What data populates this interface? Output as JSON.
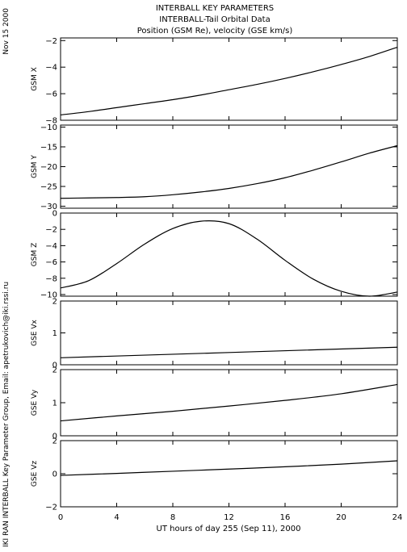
{
  "header": {
    "line1": "INTERBALL KEY PARAMETERS",
    "line2": "INTERBALL-Tail Orbital Data",
    "line3": "Position (GSM Re), velocity (GSE km/s)"
  },
  "side": {
    "date": "Nov 15 2000",
    "credit": "IKI RAN INTERBALL Key Parameter Group, Email: apetrukovich@iki.rssi.ru"
  },
  "chart_data": {
    "type": "line",
    "xlabel": "UT hours of day 255 (Sep 11), 2000",
    "xlim": [
      0,
      24
    ],
    "xticks": [
      0,
      4,
      8,
      12,
      16,
      20,
      24
    ],
    "panels": [
      {
        "ylabel": "GSM X",
        "ylim": [
          -8,
          -1.8
        ],
        "yticks": [
          -2,
          -4,
          -6,
          -8
        ],
        "x": [
          0,
          2,
          4,
          6,
          8,
          10,
          12,
          14,
          16,
          18,
          20,
          22,
          24
        ],
        "y": [
          -7.6,
          -7.35,
          -7.05,
          -6.75,
          -6.45,
          -6.1,
          -5.7,
          -5.3,
          -4.85,
          -4.35,
          -3.8,
          -3.2,
          -2.5
        ]
      },
      {
        "ylabel": "GSM Y",
        "ylim": [
          -30.5,
          -9.5
        ],
        "yticks": [
          -10,
          -15,
          -20,
          -25,
          -30
        ],
        "x": [
          0,
          2,
          4,
          6,
          8,
          10,
          12,
          14,
          16,
          18,
          20,
          22,
          24
        ],
        "y": [
          -28,
          -27.9,
          -27.8,
          -27.6,
          -27.1,
          -26.4,
          -25.5,
          -24.3,
          -22.8,
          -20.9,
          -18.8,
          -16.6,
          -14.7
        ]
      },
      {
        "ylabel": "GSM Z",
        "ylim": [
          -10.2,
          0
        ],
        "yticks": [
          0,
          -2,
          -4,
          -6,
          -8,
          -10
        ],
        "x": [
          0,
          2,
          4,
          6,
          8,
          10,
          12,
          14,
          16,
          18,
          20,
          22,
          24
        ],
        "y": [
          -9.2,
          -8.3,
          -6.2,
          -3.8,
          -1.9,
          -1.0,
          -1.3,
          -3.2,
          -5.8,
          -8.1,
          -9.6,
          -10.2,
          -9.7
        ]
      },
      {
        "ylabel": "GSE Vx",
        "ylim": [
          0,
          2
        ],
        "yticks": [
          0,
          1,
          2
        ],
        "x": [
          0,
          24
        ],
        "y": [
          0.22,
          0.55
        ]
      },
      {
        "ylabel": "GSE Vy",
        "ylim": [
          0,
          2
        ],
        "yticks": [
          0,
          1,
          2
        ],
        "x": [
          0,
          4,
          8,
          12,
          16,
          20,
          24
        ],
        "y": [
          0.45,
          0.6,
          0.74,
          0.9,
          1.07,
          1.27,
          1.55
        ]
      },
      {
        "ylabel": "GSE Vz",
        "ylim": [
          -2,
          2
        ],
        "yticks": [
          -2,
          0,
          2
        ],
        "x": [
          0,
          4,
          8,
          12,
          16,
          20,
          24
        ],
        "y": [
          -0.1,
          0.02,
          0.15,
          0.28,
          0.42,
          0.58,
          0.78
        ]
      }
    ]
  }
}
